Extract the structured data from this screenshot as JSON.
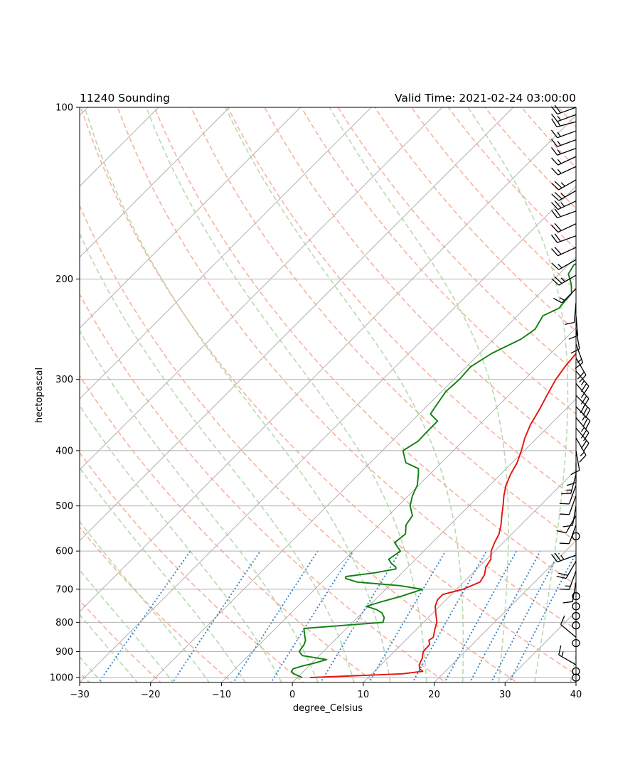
{
  "chart_data": {
    "type": "skew-t",
    "title_left": "11240 Sounding",
    "title_right": "Valid Time: 2021-02-24 03:00:00",
    "xlabel": "degree_Celsius",
    "ylabel": "hectopascal",
    "xlim": [
      -30,
      40
    ],
    "ylim": [
      1020,
      100
    ],
    "x_ticks": [
      -30,
      -20,
      -10,
      0,
      10,
      20,
      30,
      40
    ],
    "x_tick_labels": [
      "−30",
      "−20",
      "−10",
      "0",
      "10",
      "20",
      "30",
      "40"
    ],
    "y_ticks": [
      1000,
      900,
      800,
      700,
      600,
      500,
      400,
      300,
      200,
      100
    ],
    "y_tick_labels": [
      "1000",
      "900",
      "800",
      "700",
      "600",
      "500",
      "400",
      "300",
      "200",
      "100"
    ],
    "series": [
      {
        "kind": "temperature",
        "color": "#e8120c",
        "points": [
          [
            1000,
            1.8
          ],
          [
            985,
            14.3
          ],
          [
            975,
            16.8
          ],
          [
            965,
            16.0
          ],
          [
            950,
            15.4
          ],
          [
            925,
            14.9
          ],
          [
            900,
            14.1
          ],
          [
            875,
            14.0
          ],
          [
            860,
            13.3
          ],
          [
            850,
            13.5
          ],
          [
            820,
            12.5
          ],
          [
            800,
            11.9
          ],
          [
            770,
            10.4
          ],
          [
            750,
            9.4
          ],
          [
            730,
            8.8
          ],
          [
            715,
            8.8
          ],
          [
            700,
            10.9
          ],
          [
            680,
            12.3
          ],
          [
            660,
            11.9
          ],
          [
            640,
            11.0
          ],
          [
            620,
            10.6
          ],
          [
            600,
            9.5
          ],
          [
            580,
            8.8
          ],
          [
            560,
            8.2
          ],
          [
            540,
            7.2
          ],
          [
            520,
            6.0
          ],
          [
            500,
            4.8
          ],
          [
            480,
            3.5
          ],
          [
            460,
            2.3
          ],
          [
            440,
            1.4
          ],
          [
            420,
            0.7
          ],
          [
            400,
            -0.4
          ],
          [
            380,
            -1.7
          ],
          [
            360,
            -2.8
          ],
          [
            340,
            -3.6
          ],
          [
            320,
            -4.6
          ],
          [
            300,
            -5.6
          ],
          [
            285,
            -6.1
          ],
          [
            270,
            -6.4
          ],
          [
            255,
            -7.1
          ],
          [
            240,
            -7.8
          ],
          [
            225,
            -7.4
          ],
          [
            215,
            -7.9
          ],
          [
            208,
            -7.8
          ],
          [
            202,
            -6.5
          ],
          [
            196,
            -3.9
          ],
          [
            190,
            -3.0
          ],
          [
            183,
            -1.9
          ],
          [
            178,
            -0.2
          ],
          [
            172,
            2.3
          ],
          [
            168,
            2.1
          ],
          [
            162,
            3.0
          ],
          [
            156,
            2.6
          ],
          [
            151,
            3.2
          ],
          [
            145,
            4.7
          ],
          [
            140,
            6.7
          ],
          [
            135,
            9.6
          ],
          [
            133,
            11.8
          ],
          [
            128,
            11.5
          ],
          [
            122,
            11.8
          ],
          [
            118,
            13.2
          ],
          [
            114,
            13.6
          ],
          [
            111,
            14.0
          ],
          [
            109,
            14.9
          ],
          [
            106,
            15.4
          ],
          [
            103,
            15.7
          ],
          [
            100,
            16.5
          ]
        ]
      },
      {
        "kind": "dewpoint",
        "color": "#118011",
        "points": [
          [
            1000,
            0.7
          ],
          [
            985,
            -1.0
          ],
          [
            975,
            -1.7
          ],
          [
            965,
            -1.8
          ],
          [
            955,
            -1.0
          ],
          [
            945,
            0.2
          ],
          [
            930,
            1.6
          ],
          [
            915,
            -2.4
          ],
          [
            900,
            -3.4
          ],
          [
            875,
            -3.7
          ],
          [
            860,
            -4.1
          ],
          [
            850,
            -4.6
          ],
          [
            820,
            -6.0
          ],
          [
            800,
            4.3
          ],
          [
            785,
            3.8
          ],
          [
            770,
            2.8
          ],
          [
            760,
            1.6
          ],
          [
            750,
            -0.3
          ],
          [
            735,
            1.3
          ],
          [
            720,
            3.2
          ],
          [
            700,
            5.2
          ],
          [
            690,
            1.5
          ],
          [
            680,
            -5.0
          ],
          [
            670,
            -7.2
          ],
          [
            665,
            -7.4
          ],
          [
            655,
            -3.8
          ],
          [
            645,
            -1.4
          ],
          [
            640,
            -1.7
          ],
          [
            630,
            -2.9
          ],
          [
            620,
            -3.8
          ],
          [
            600,
            -3.3
          ],
          [
            580,
            -5.3
          ],
          [
            560,
            -5.0
          ],
          [
            540,
            -6.2
          ],
          [
            520,
            -6.6
          ],
          [
            500,
            -8.3
          ],
          [
            480,
            -9.4
          ],
          [
            460,
            -10.2
          ],
          [
            440,
            -11.6
          ],
          [
            430,
            -12.4
          ],
          [
            420,
            -15.0
          ],
          [
            400,
            -17.1
          ],
          [
            385,
            -16.3
          ],
          [
            370,
            -16.4
          ],
          [
            355,
            -16.4
          ],
          [
            345,
            -18.4
          ],
          [
            330,
            -18.9
          ],
          [
            315,
            -19.4
          ],
          [
            300,
            -19.2
          ],
          [
            285,
            -19.4
          ],
          [
            270,
            -18.3
          ],
          [
            255,
            -16.2
          ],
          [
            245,
            -15.6
          ],
          [
            232,
            -16.4
          ],
          [
            225,
            -15.2
          ],
          [
            212,
            -15.5
          ],
          [
            204,
            -16.9
          ],
          [
            196,
            -18.7
          ],
          [
            189,
            -19.2
          ],
          [
            184,
            -18.4
          ],
          [
            176,
            -18.2
          ],
          [
            170,
            -18.2
          ],
          [
            163,
            -17.4
          ],
          [
            157,
            -17.4
          ],
          [
            151,
            -16.2
          ],
          [
            145,
            -15.4
          ],
          [
            140,
            -14.8
          ],
          [
            134,
            -14.0
          ],
          [
            128,
            -13.3
          ],
          [
            122,
            -12.4
          ],
          [
            116,
            -11.3
          ],
          [
            110,
            -10.2
          ],
          [
            105,
            -8.8
          ],
          [
            100,
            -7.2
          ]
        ]
      }
    ],
    "reference_lines": {
      "isotherm_color": "#b0b0b0",
      "dry_adiabat_color": "#f5a68e",
      "moist_adiabat_color": "#a8d4a0",
      "mixing_ratio_color": "#2d7fc6"
    },
    "wind_barbs": [
      {
        "p": 1000,
        "speed": 0,
        "dir": 0
      },
      {
        "p": 975,
        "speed": 0,
        "dir": 0
      },
      {
        "p": 950,
        "speed": 15,
        "dir": 300
      },
      {
        "p": 870,
        "speed": 0,
        "dir": 0
      },
      {
        "p": 850,
        "speed": 10,
        "dir": 310
      },
      {
        "p": 810,
        "speed": 0,
        "dir": 0
      },
      {
        "p": 780,
        "speed": 0,
        "dir": 0
      },
      {
        "p": 750,
        "speed": 0,
        "dir": 0
      },
      {
        "p": 720,
        "speed": 0,
        "dir": 0
      },
      {
        "p": 680,
        "speed": 10,
        "dir": 190
      },
      {
        "p": 650,
        "speed": 15,
        "dir": 200
      },
      {
        "p": 625,
        "speed": 20,
        "dir": 210
      },
      {
        "p": 610,
        "speed": 25,
        "dir": 250
      },
      {
        "p": 565,
        "speed": 0,
        "dir": 0
      },
      {
        "p": 540,
        "speed": 10,
        "dir": 200
      },
      {
        "p": 520,
        "speed": 10,
        "dir": 210
      },
      {
        "p": 500,
        "speed": 10,
        "dir": 190
      },
      {
        "p": 480,
        "speed": 10,
        "dir": 200
      },
      {
        "p": 460,
        "speed": 10,
        "dir": 200
      },
      {
        "p": 440,
        "speed": 15,
        "dir": 195
      },
      {
        "p": 420,
        "speed": 10,
        "dir": 180
      },
      {
        "p": 400,
        "speed": 10,
        "dir": 170
      },
      {
        "p": 380,
        "speed": 15,
        "dir": 150
      },
      {
        "p": 365,
        "speed": 20,
        "dir": 140
      },
      {
        "p": 350,
        "speed": 25,
        "dir": 140
      },
      {
        "p": 335,
        "speed": 25,
        "dir": 135
      },
      {
        "p": 320,
        "speed": 30,
        "dir": 135
      },
      {
        "p": 305,
        "speed": 25,
        "dir": 140
      },
      {
        "p": 290,
        "speed": 25,
        "dir": 140
      },
      {
        "p": 275,
        "speed": 20,
        "dir": 150
      },
      {
        "p": 260,
        "speed": 15,
        "dir": 160
      },
      {
        "p": 245,
        "speed": 10,
        "dir": 170
      },
      {
        "p": 232,
        "speed": 10,
        "dir": 175
      },
      {
        "p": 220,
        "speed": 10,
        "dir": 185
      },
      {
        "p": 208,
        "speed": 15,
        "dir": 225
      },
      {
        "p": 197,
        "speed": 25,
        "dir": 240
      },
      {
        "p": 185,
        "speed": 15,
        "dir": 240
      },
      {
        "p": 176,
        "speed": 20,
        "dir": 245
      },
      {
        "p": 168,
        "speed": 20,
        "dir": 250
      },
      {
        "p": 160,
        "speed": 20,
        "dir": 245
      },
      {
        "p": 152,
        "speed": 20,
        "dir": 250
      },
      {
        "p": 146,
        "speed": 25,
        "dir": 245
      },
      {
        "p": 140,
        "speed": 25,
        "dir": 240
      },
      {
        "p": 134,
        "speed": 25,
        "dir": 240
      },
      {
        "p": 127,
        "speed": 15,
        "dir": 245
      },
      {
        "p": 122,
        "speed": 15,
        "dir": 245
      },
      {
        "p": 118,
        "speed": 15,
        "dir": 250
      },
      {
        "p": 114,
        "speed": 15,
        "dir": 250
      },
      {
        "p": 110,
        "speed": 15,
        "dir": 250
      },
      {
        "p": 106,
        "speed": 15,
        "dir": 255
      },
      {
        "p": 103,
        "speed": 15,
        "dir": 250
      },
      {
        "p": 100,
        "speed": 20,
        "dir": 250
      }
    ]
  }
}
